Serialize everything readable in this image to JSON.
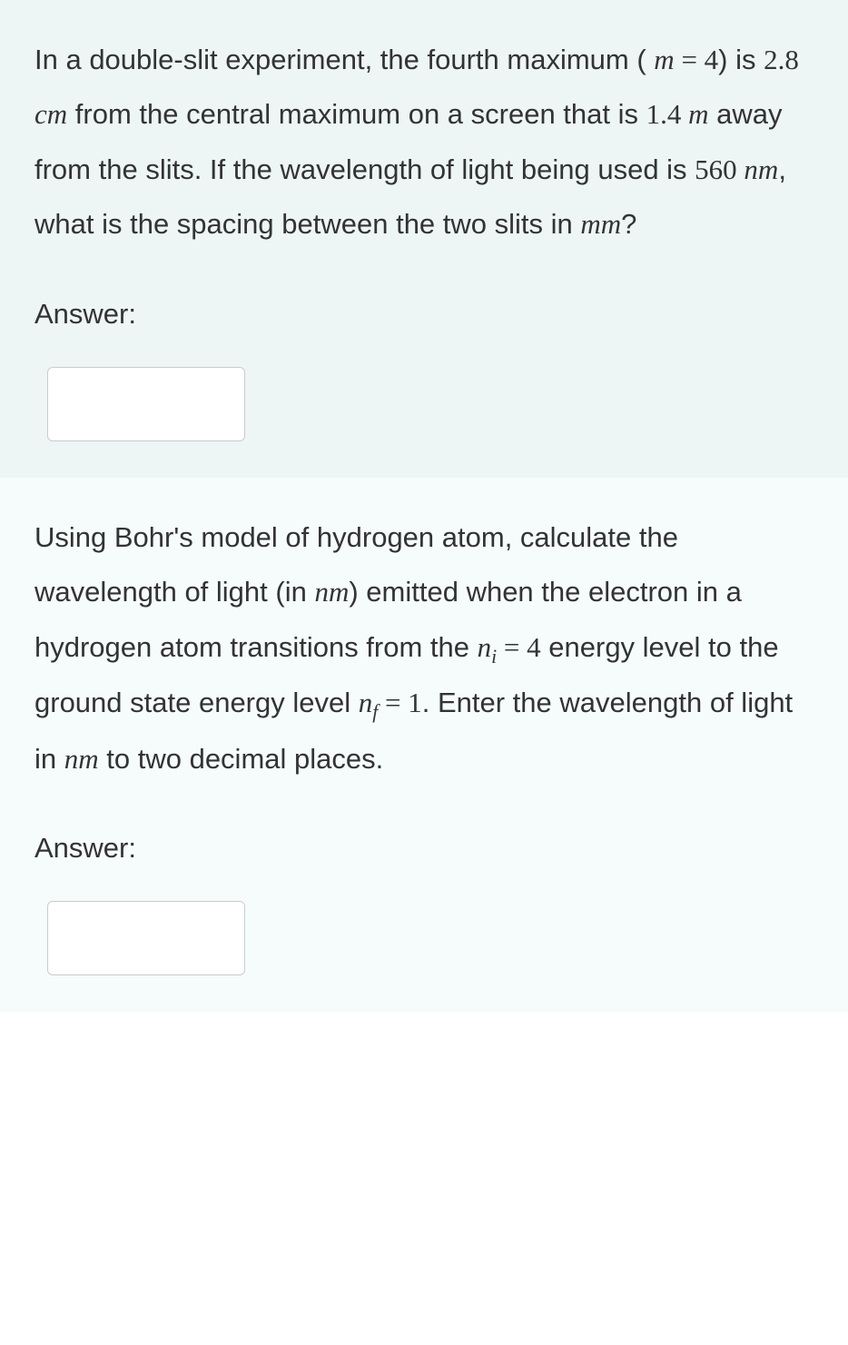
{
  "colors": {
    "block1_bg": "#edf5f5",
    "block2_bg": "#f6fbfb",
    "text_color": "#333333",
    "input_border": "#cccccc"
  },
  "q1": {
    "text_part1": "In a double-slit experiment, the fourth maximum ( ",
    "m_var": "m",
    "eq1": " = ",
    "m_val": "4",
    "text_part2": ") is ",
    "dist1": "2.8",
    "unit_cm": " cm",
    "text_part3": " from the central maximum on a screen that is ",
    "dist2": "1.4",
    "unit_m": " m",
    "text_part4": " away from the slits. If the wavelength of light being used is ",
    "wavelength": "560",
    "unit_nm": " nm",
    "text_part5": ", what is the spacing between the two slits in ",
    "unit_mm": "mm",
    "text_part6": "?",
    "answer_label": "Answer:"
  },
  "q2": {
    "text_part1": "Using Bohr's model of hydrogen atom, calculate the wavelength of light (in ",
    "unit_nm1": "nm",
    "text_part2": ") emitted when the electron in a hydrogen atom transitions from the ",
    "n_var1": "n",
    "i_sub": "i",
    "eq1": " = ",
    "ni_val": "4",
    "text_part3": " energy level to the ground state energy level ",
    "n_var2": "n",
    "f_sub": "f",
    "eq2": " = ",
    "nf_val": "1",
    "text_part4": ". Enter the wavelength of light in ",
    "unit_nm2": "nm",
    "text_part5": " to two decimal places.",
    "answer_label": "Answer:"
  }
}
